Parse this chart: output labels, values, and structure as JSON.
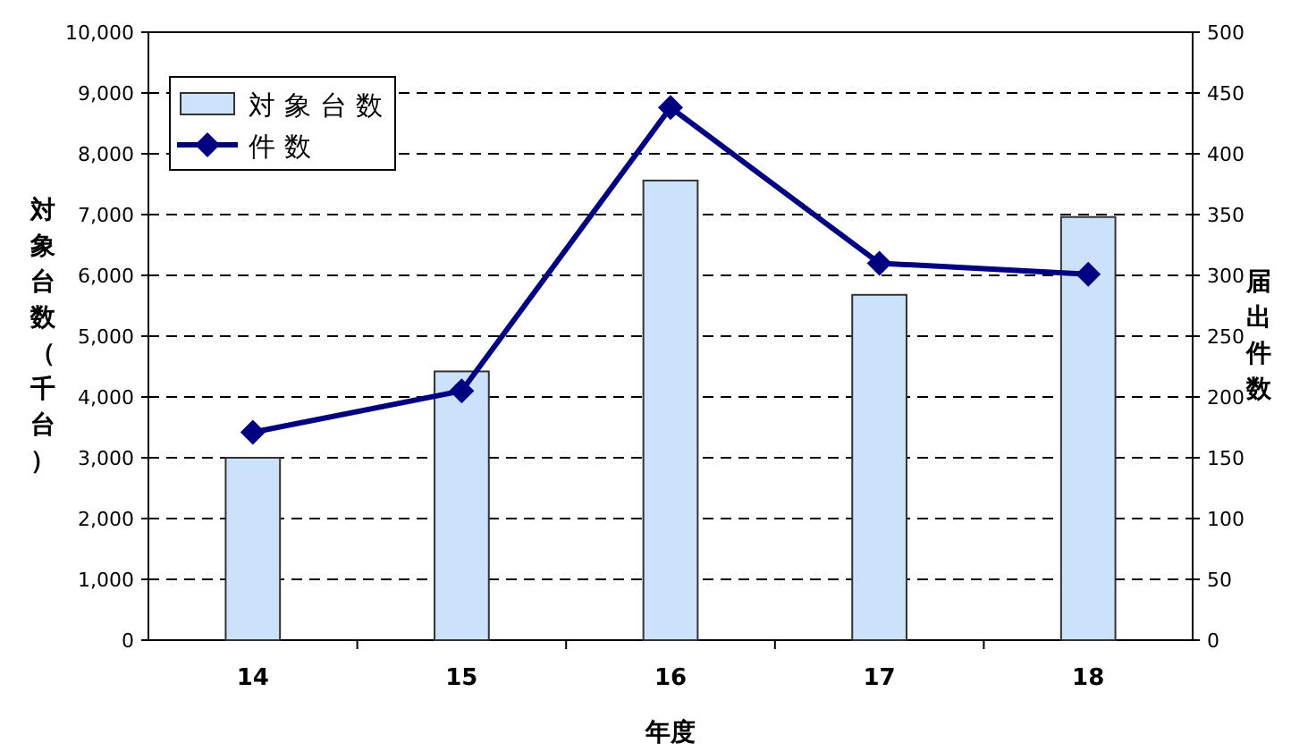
{
  "chart_data": {
    "type": "bar",
    "xlabel": "年度",
    "ylabel": "対象台数（千台）",
    "y2label": "届出件数",
    "categories": [
      "14",
      "15",
      "16",
      "17",
      "18"
    ],
    "series": [
      {
        "name": "対象台数",
        "color": "#cce2fa",
        "values": [
          3000,
          4420,
          7560,
          5680,
          6960
        ]
      },
      {
        "name": "件数",
        "type": "line",
        "axis": "y2",
        "color": "#000080",
        "marker": "diamond",
        "values": [
          171,
          205,
          438,
          310,
          301
        ]
      }
    ],
    "ylim": [
      0,
      10000
    ],
    "yticks": [
      0,
      {
        "value": 1000,
        "label": "1,000"
      },
      {
        "value": 2000,
        "label": "2,000"
      },
      {
        "value": 3000,
        "label": "3,000"
      },
      {
        "value": 4000,
        "label": "4,000"
      },
      {
        "value": 5000,
        "label": "5,000"
      },
      {
        "value": 6000,
        "label": "6,000"
      },
      {
        "value": 7000,
        "label": "7,000"
      },
      {
        "value": 8000,
        "label": "8,000"
      },
      {
        "value": 9000,
        "label": "9,000"
      },
      {
        "value": 10000,
        "label": "10,000"
      }
    ],
    "y2lim": [
      0,
      500
    ],
    "y2ticks": [
      0,
      50,
      100,
      150,
      200,
      250,
      300,
      350,
      400,
      450,
      500
    ],
    "grid": "y",
    "legend": "top left"
  }
}
